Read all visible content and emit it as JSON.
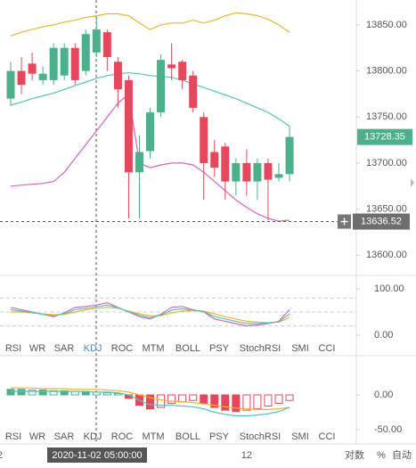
{
  "chart_data": [
    {
      "type": "candlestick",
      "up_color": "#4cb08a",
      "down_color": "#e5485c",
      "open": [
        13770,
        13800,
        13808,
        13790,
        13790,
        13795,
        13825,
        13800,
        13820,
        13842,
        13810,
        13790,
        13690,
        13713,
        13755,
        13807,
        13810,
        13795,
        13750,
        13712,
        13718,
        13680,
        13700,
        13680,
        13700,
        13684,
        13688
      ],
      "high": [
        13810,
        13815,
        13820,
        13805,
        13830,
        13830,
        13830,
        13845,
        13858,
        13845,
        13815,
        13795,
        13730,
        13760,
        13818,
        13830,
        13812,
        13800,
        13755,
        13725,
        13722,
        13705,
        13715,
        13705,
        13705,
        13700,
        13740
      ],
      "low": [
        13762,
        13775,
        13790,
        13785,
        13785,
        13790,
        13785,
        13795,
        13815,
        13800,
        13760,
        13640,
        13640,
        13705,
        13750,
        13790,
        13780,
        13755,
        13660,
        13685,
        13660,
        13665,
        13665,
        13660,
        13638,
        13680,
        13680
      ],
      "close": [
        13800,
        13785,
        13797,
        13797,
        13825,
        13825,
        13790,
        13840,
        13845,
        13815,
        13780,
        13690,
        13712,
        13755,
        13812,
        13803,
        13790,
        13760,
        13700,
        13695,
        13680,
        13700,
        13680,
        13700,
        13682,
        13688,
        13728.35
      ],
      "series": [
        {
          "color": "#f0b429",
          "values": [
            13838,
            13842,
            13845,
            13848,
            13850,
            13853,
            13855,
            13858,
            13860,
            13862,
            13862,
            13860,
            13852,
            13845,
            13850,
            13852,
            13852,
            13855,
            13852,
            13855,
            13860,
            13863,
            13862,
            13860,
            13856,
            13850,
            13842
          ]
        },
        {
          "color": "#4fc7b5",
          "values": [
            13763,
            13766,
            13770,
            13773,
            13776,
            13780,
            13784,
            13788,
            13792,
            13795,
            13797,
            13798,
            13797,
            13795,
            13794,
            13793,
            13790,
            13786,
            13782,
            13778,
            13774,
            13770,
            13765,
            13760,
            13755,
            13748,
            13740
          ]
        },
        {
          "color": "#dd5fc1",
          "values": [
            13675,
            13676,
            13677,
            13678,
            13680,
            13690,
            13705,
            13720,
            13735,
            13750,
            13765,
            13775,
            13700,
            13695,
            13698,
            13700,
            13700,
            13698,
            13690,
            13680,
            13670,
            13660,
            13652,
            13645,
            13640,
            13637,
            13638
          ]
        }
      ],
      "ylim": [
        13579,
        13877
      ],
      "yticks": [
        {
          "value": 13850,
          "label": "13850.00"
        },
        {
          "value": 13800,
          "label": "13800.00"
        },
        {
          "value": 13750,
          "label": "13750.00"
        },
        {
          "value": 13700,
          "label": "13700.00"
        },
        {
          "value": 13650,
          "label": "13650.00"
        },
        {
          "value": 13600,
          "label": "13600.00"
        }
      ],
      "last_price": 13728.35,
      "crosshair": {
        "price": 13636.52,
        "time": "2020-11-02 05:00:00"
      },
      "xticks": [
        {
          "value": -1,
          "label": "2"
        },
        {
          "value": 22,
          "label": "12"
        }
      ]
    },
    {
      "type": "line",
      "active_tab": "KDJ",
      "tabs": [
        "RSI",
        "WR",
        "SAR",
        "KDJ",
        "ROC",
        "MTM",
        "BOLL",
        "PSY",
        "StochRSI",
        "SMI",
        "CCI"
      ],
      "levels": [
        80,
        50,
        20
      ],
      "series": [
        {
          "color": "#dd5fc1",
          "values": [
            60,
            55,
            50,
            45,
            40,
            48,
            60,
            62,
            65,
            70,
            60,
            50,
            40,
            35,
            45,
            60,
            62,
            55,
            50,
            35,
            30,
            25,
            20,
            22,
            25,
            30,
            55
          ]
        },
        {
          "color": "#f0b429",
          "values": [
            50,
            50,
            48,
            46,
            44,
            45,
            50,
            55,
            58,
            60,
            58,
            52,
            46,
            42,
            42,
            48,
            52,
            53,
            52,
            46,
            40,
            35,
            30,
            28,
            27,
            28,
            38
          ]
        },
        {
          "color": "#4fc7b5",
          "values": [
            55,
            52,
            49,
            45,
            42,
            46,
            55,
            58,
            61,
            65,
            59,
            51,
            43,
            38,
            43,
            54,
            57,
            54,
            51,
            40,
            35,
            30,
            25,
            25,
            26,
            29,
            46
          ]
        }
      ],
      "ylim": [
        -10,
        125
      ],
      "yticks": [
        {
          "value": 100,
          "label": "100.00"
        },
        {
          "value": 0,
          "label": "0.00"
        }
      ]
    },
    {
      "type": "macd",
      "up_color": "#4cb08a",
      "down_color": "#e5485c",
      "tabs": [
        "RSI",
        "WR",
        "SAR",
        "KDJ",
        "ROC",
        "MTM",
        "BOLL",
        "PSY",
        "StochRSI",
        "SMI",
        "CCI"
      ],
      "values": [
        8,
        8,
        7,
        7,
        6,
        6,
        5,
        5,
        4,
        3,
        2,
        -5,
        -15,
        -20,
        -18,
        -12,
        -10,
        -8,
        -12,
        -18,
        -22,
        -24,
        -22,
        -20,
        -16,
        -12,
        -8
      ],
      "series": [
        {
          "color": "#f0b429",
          "values": [
            10,
            10,
            10,
            9,
            9,
            9,
            8,
            8,
            8,
            7,
            6,
            4,
            0,
            -4,
            -7,
            -9,
            -10,
            -11,
            -13,
            -15,
            -17,
            -19,
            -20,
            -21,
            -21,
            -20,
            -18
          ]
        },
        {
          "color": "#4fc7b5",
          "values": [
            5,
            5,
            5,
            5,
            5,
            5,
            5,
            5,
            4,
            4,
            3,
            0,
            -8,
            -14,
            -15,
            -15,
            -16,
            -17,
            -20,
            -25,
            -28,
            -30,
            -30,
            -29,
            -27,
            -24,
            -18
          ]
        }
      ],
      "ylim": [
        -65,
        45
      ],
      "yticks": [
        {
          "value": 0,
          "label": "0.00"
        },
        {
          "value": -50,
          "label": "-50.00"
        }
      ]
    }
  ],
  "footer": {
    "log": "对数",
    "percent": "%",
    "auto": "自动"
  }
}
